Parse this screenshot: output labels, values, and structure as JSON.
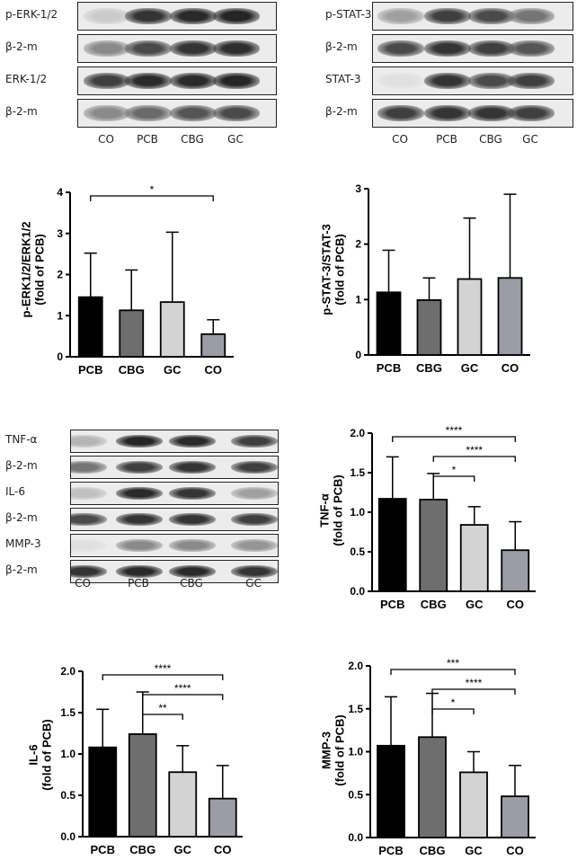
{
  "colors": {
    "PCB": "#000000",
    "CBG": "#6e6e6e",
    "GC": "#d3d3d3",
    "CO": "#9c9ca6"
  },
  "blot_panels": [
    {
      "id": "blot-erk",
      "lanes": [
        "CO",
        "PCB",
        "CBG",
        "GC"
      ],
      "rows": [
        {
          "label": "p-ERK-1/2",
          "intensity": [
            0.15,
            0.85,
            0.9,
            0.92
          ]
        },
        {
          "label": "β-2-m",
          "intensity": [
            0.45,
            0.75,
            0.85,
            0.88
          ]
        },
        {
          "label": "ERK-1/2",
          "intensity": [
            0.8,
            0.9,
            0.9,
            0.92
          ]
        },
        {
          "label": "β-2-m",
          "intensity": [
            0.45,
            0.6,
            0.7,
            0.75
          ]
        }
      ]
    },
    {
      "id": "blot-stat",
      "lanes": [
        "CO",
        "PCB",
        "CBG",
        "GC"
      ],
      "rows": [
        {
          "label": "p-STAT-3",
          "intensity": [
            0.35,
            0.8,
            0.75,
            0.55
          ]
        },
        {
          "label": "β-2-m",
          "intensity": [
            0.75,
            0.85,
            0.8,
            0.7
          ]
        },
        {
          "label": "STAT-3",
          "intensity": [
            0.05,
            0.85,
            0.75,
            0.8
          ]
        },
        {
          "label": "β-2-m",
          "intensity": [
            0.8,
            0.85,
            0.85,
            0.8
          ]
        }
      ]
    },
    {
      "id": "blot-cyto",
      "lanes": [
        "CO",
        "PCB",
        "CBG",
        "GC"
      ],
      "rows": [
        {
          "label": "TNF-α",
          "intensity": [
            0.25,
            0.92,
            0.9,
            0.8
          ]
        },
        {
          "label": "β-2-m",
          "intensity": [
            0.55,
            0.8,
            0.85,
            0.8
          ]
        },
        {
          "label": "IL-6",
          "intensity": [
            0.2,
            0.9,
            0.85,
            0.35
          ]
        },
        {
          "label": "β-2-m",
          "intensity": [
            0.75,
            0.85,
            0.85,
            0.8
          ]
        },
        {
          "label": "MMP-3",
          "intensity": [
            0.05,
            0.45,
            0.45,
            0.4
          ]
        },
        {
          "label": "β-2-m",
          "intensity": [
            0.85,
            0.9,
            0.9,
            0.85
          ]
        }
      ]
    }
  ],
  "chart_data": [
    {
      "id": "chart-erk",
      "type": "bar",
      "categories": [
        "PCB",
        "CBG",
        "GC",
        "CO"
      ],
      "values": [
        1.45,
        1.13,
        1.33,
        0.55
      ],
      "errors": [
        1.07,
        0.98,
        1.7,
        0.35
      ],
      "ylabel": "p-ERK1/2/ERK1/2\n(fold of PCB)",
      "ylim": [
        0,
        4
      ],
      "yticks": [
        "0",
        "1",
        "2",
        "3",
        "4"
      ],
      "significance": [
        {
          "from": "PCB",
          "to": "CO",
          "label": "*"
        }
      ]
    },
    {
      "id": "chart-stat",
      "type": "bar",
      "categories": [
        "PCB",
        "CBG",
        "GC",
        "CO"
      ],
      "values": [
        1.13,
        0.99,
        1.37,
        1.39
      ],
      "errors": [
        0.76,
        0.4,
        1.1,
        1.51
      ],
      "ylabel": "p-STAT-3/STAT-3\n(fold of PCB)",
      "ylim": [
        0,
        3
      ],
      "yticks": [
        "0",
        "1",
        "2",
        "3"
      ],
      "significance": []
    },
    {
      "id": "chart-tnf",
      "type": "bar",
      "categories": [
        "PCB",
        "CBG",
        "GC",
        "CO"
      ],
      "values": [
        1.17,
        1.16,
        0.84,
        0.52
      ],
      "errors": [
        0.53,
        0.33,
        0.23,
        0.36
      ],
      "ylabel": "TNF-α\n(fold of PCB)",
      "ylim": [
        0,
        2
      ],
      "yticks": [
        "0.0",
        "0.5",
        "1.0",
        "1.5",
        "2.0"
      ],
      "significance": [
        {
          "from": "PCB",
          "to": "CO",
          "label": "****"
        },
        {
          "from": "CBG",
          "to": "GC",
          "label": "*"
        },
        {
          "from": "CBG",
          "to": "CO",
          "label": "****"
        }
      ]
    },
    {
      "id": "chart-il6",
      "type": "bar",
      "categories": [
        "PCB",
        "CBG",
        "GC",
        "CO"
      ],
      "values": [
        1.08,
        1.24,
        0.78,
        0.46
      ],
      "errors": [
        0.46,
        0.51,
        0.32,
        0.4
      ],
      "ylabel": "IL-6\n(fold of PCB)",
      "ylim": [
        0,
        2
      ],
      "yticks": [
        "0.0",
        "0.5",
        "1.0",
        "1.5",
        "2.0"
      ],
      "significance": [
        {
          "from": "PCB",
          "to": "CO",
          "label": "****"
        },
        {
          "from": "CBG",
          "to": "CO",
          "label": "****"
        },
        {
          "from": "CBG",
          "to": "GC",
          "label": "**"
        }
      ]
    },
    {
      "id": "chart-mmp",
      "type": "bar",
      "categories": [
        "PCB",
        "CBG",
        "GC",
        "CO"
      ],
      "values": [
        1.07,
        1.17,
        0.76,
        0.48
      ],
      "errors": [
        0.57,
        0.51,
        0.24,
        0.36
      ],
      "ylabel": "MMP-3\n(fold of PCB)",
      "ylim": [
        0,
        2
      ],
      "yticks": [
        "0.0",
        "0.5",
        "1.0",
        "1.5",
        "2.0"
      ],
      "significance": [
        {
          "from": "PCB",
          "to": "CO",
          "label": "***"
        },
        {
          "from": "CBG",
          "to": "CO",
          "label": "****"
        },
        {
          "from": "CBG",
          "to": "GC",
          "label": "*"
        }
      ]
    }
  ]
}
